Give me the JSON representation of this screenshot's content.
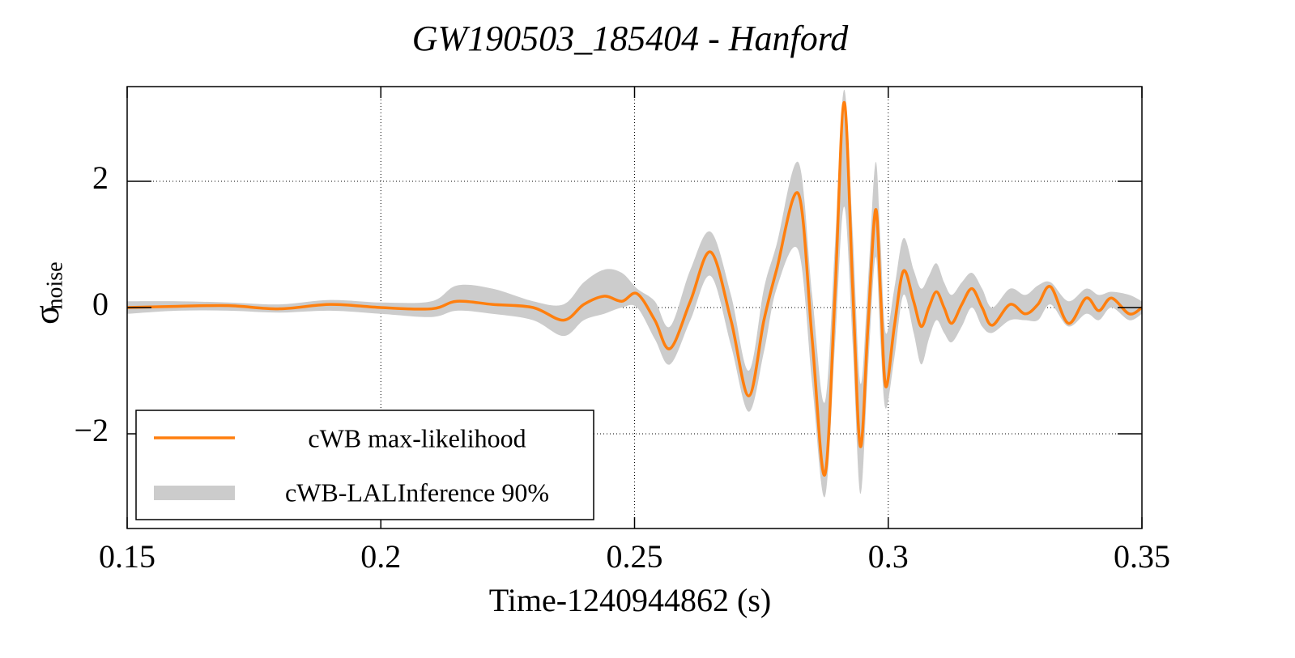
{
  "chart_data": {
    "type": "line",
    "title": "GW190503_185404 - Hanford",
    "xlabel": "Time-1240944862 (s)",
    "ylabel": "σ",
    "ylabel_subscript": "noise",
    "xlim": [
      0.15,
      0.35
    ],
    "ylim": [
      -3.5,
      3.5
    ],
    "xticks": [
      0.15,
      0.2,
      0.25,
      0.3,
      0.35
    ],
    "yticks": [
      {
        "value": -2,
        "label": "−2"
      },
      0,
      2
    ],
    "grid": true,
    "legend": "lower left",
    "x": [
      0.15,
      0.16,
      0.17,
      0.18,
      0.19,
      0.2,
      0.21,
      0.215,
      0.222,
      0.23,
      0.236,
      0.24,
      0.244,
      0.2475,
      0.2505,
      0.254,
      0.257,
      0.261,
      0.265,
      0.269,
      0.2725,
      0.2755,
      0.278,
      0.2823,
      0.285,
      0.2875,
      0.2895,
      0.2913,
      0.293,
      0.2945,
      0.296,
      0.2975,
      0.2985,
      0.2995,
      0.3012,
      0.303,
      0.305,
      0.3065,
      0.308,
      0.3095,
      0.311,
      0.3125,
      0.3145,
      0.3165,
      0.3185,
      0.3205,
      0.324,
      0.327,
      0.3295,
      0.332,
      0.3355,
      0.339,
      0.3415,
      0.344,
      0.3475,
      0.35
    ],
    "series": [
      {
        "name": "cWB max-likelihood",
        "color": "#ff7f0e",
        "values": [
          0,
          0.02,
          0.03,
          -0.02,
          0.05,
          0.0,
          -0.02,
          0.1,
          0.05,
          0.0,
          -0.2,
          0.05,
          0.18,
          0.1,
          0.22,
          -0.2,
          -0.65,
          0.1,
          0.88,
          -0.2,
          -1.4,
          -0.2,
          0.6,
          1.8,
          -0.5,
          -2.65,
          0.2,
          3.25,
          0.3,
          -2.2,
          -0.3,
          1.55,
          0.2,
          -1.25,
          -0.3,
          0.58,
          0.1,
          -0.3,
          0,
          0.25,
          0,
          -0.25,
          0.05,
          0.3,
          0.0,
          -0.28,
          0.05,
          -0.1,
          0.05,
          0.33,
          -0.25,
          0.15,
          -0.05,
          0.15,
          -0.1,
          0
        ]
      }
    ],
    "band": {
      "name": "cWB-LALInference 90%",
      "color": "#cccccc",
      "upper": [
        0.1,
        0.1,
        0.08,
        0.05,
        0.12,
        0.08,
        0.1,
        0.35,
        0.3,
        0.1,
        0.05,
        0.4,
        0.6,
        0.55,
        0.3,
        0.1,
        -0.3,
        0.6,
        1.2,
        0.2,
        -1.0,
        0.3,
        1.0,
        2.3,
        0.2,
        -1.5,
        1.0,
        3.45,
        1.2,
        -1.2,
        0.4,
        2.3,
        1.0,
        -0.4,
        0.3,
        1.1,
        0.6,
        0.3,
        0.5,
        0.7,
        0.4,
        0.2,
        0.4,
        0.55,
        0.3,
        0.0,
        0.3,
        0.2,
        0.35,
        0.4,
        0.1,
        0.3,
        0.2,
        0.25,
        0.2,
        0.1
      ],
      "lower": [
        -0.1,
        -0.05,
        -0.05,
        -0.08,
        -0.05,
        -0.1,
        -0.15,
        -0.05,
        -0.1,
        -0.2,
        -0.45,
        -0.2,
        -0.1,
        0.0,
        0.0,
        -0.5,
        -0.9,
        -0.2,
        0.5,
        -0.6,
        -1.65,
        -0.7,
        0.3,
        0.9,
        -1.2,
        -3.0,
        -0.6,
        1.6,
        -0.6,
        -2.95,
        -1.0,
        0.8,
        -0.6,
        -1.6,
        -0.8,
        0.2,
        -0.4,
        -0.9,
        -0.5,
        -0.2,
        -0.4,
        -0.55,
        -0.3,
        0.0,
        -0.3,
        -0.4,
        -0.2,
        -0.2,
        -0.2,
        0.05,
        -0.3,
        -0.1,
        -0.2,
        0.0,
        -0.2,
        -0.1
      ]
    }
  }
}
